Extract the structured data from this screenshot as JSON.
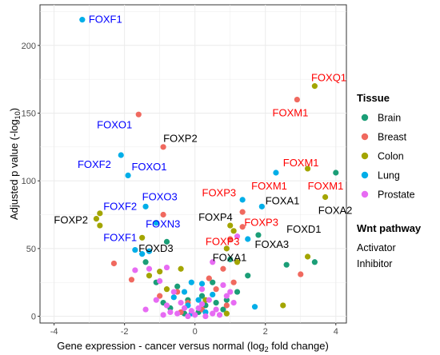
{
  "chart_data": {
    "type": "scatter",
    "xlabel": "Gene expression - cancer versus normal (log",
    "xlabel_sub": "2",
    "xlabel_tail": " fold change)",
    "ylabel": "Adjusted p value (-log",
    "ylabel_sub": "10",
    "ylabel_tail": ")",
    "xlim": [
      -4.4,
      4.3
    ],
    "ylim": [
      -5,
      230
    ],
    "x_ticks": [
      -4,
      -2,
      0,
      2,
      4
    ],
    "y_ticks": [
      0,
      50,
      100,
      150,
      200
    ],
    "grid": true,
    "legend_position": "right",
    "tissue_legend": {
      "title": "Tissue",
      "items": [
        {
          "name": "Brain",
          "color": "#1b9e77"
        },
        {
          "name": "Breast",
          "color": "#f0695f"
        },
        {
          "name": "Colon",
          "color": "#a3a500"
        },
        {
          "name": "Lung",
          "color": "#00aee8"
        },
        {
          "name": "Prostate",
          "color": "#e76bf3"
        }
      ]
    },
    "pathway_legend": {
      "title": "Wnt pathway",
      "items": [
        {
          "name": "Activator",
          "color": "#ff0000"
        },
        {
          "name": "Inhibitor",
          "color": "#0000ff"
        }
      ]
    },
    "series": [
      {
        "name": "Brain",
        "color": "#1b9e77",
        "points": [
          [
            -1.4,
            40
          ],
          [
            -0.8,
            55
          ],
          [
            1.0,
            42
          ],
          [
            1.8,
            60
          ],
          [
            2.6,
            38
          ],
          [
            3.4,
            40
          ],
          [
            4.0,
            106
          ],
          [
            -0.5,
            22
          ],
          [
            0.5,
            25
          ],
          [
            1.2,
            18
          ],
          [
            -0.2,
            12
          ],
          [
            0.3,
            8
          ],
          [
            0.8,
            5
          ],
          [
            -0.9,
            10
          ],
          [
            1.5,
            30
          ],
          [
            -0.3,
            2
          ],
          [
            0.1,
            3
          ],
          [
            0.6,
            10
          ],
          [
            -0.7,
            6
          ],
          [
            0.9,
            12
          ],
          [
            -1.1,
            25
          ],
          [
            0.2,
            15
          ]
        ]
      },
      {
        "name": "Breast",
        "color": "#f0695f",
        "points": [
          [
            -1.6,
            149
          ],
          [
            -0.9,
            125
          ],
          [
            -0.9,
            75
          ],
          [
            1.0,
            57
          ],
          [
            1.35,
            77
          ],
          [
            1.35,
            66
          ],
          [
            2.9,
            160
          ],
          [
            3.0,
            31
          ],
          [
            -2.3,
            39
          ],
          [
            -1.8,
            27
          ],
          [
            0.8,
            35
          ],
          [
            0.4,
            28
          ],
          [
            -0.5,
            18
          ],
          [
            0.2,
            5
          ],
          [
            -0.2,
            10
          ],
          [
            0.6,
            20
          ],
          [
            -1.0,
            15
          ],
          [
            1.1,
            25
          ],
          [
            -0.4,
            3
          ],
          [
            0.9,
            8
          ]
        ]
      },
      {
        "name": "Colon",
        "color": "#a3a500",
        "points": [
          [
            -2.8,
            72
          ],
          [
            -2.7,
            76
          ],
          [
            -2.7,
            67
          ],
          [
            -1.5,
            58
          ],
          [
            3.4,
            170
          ],
          [
            3.2,
            109
          ],
          [
            3.7,
            88
          ],
          [
            1.0,
            67
          ],
          [
            1.1,
            63
          ],
          [
            0.9,
            50
          ],
          [
            3.2,
            44
          ],
          [
            2.5,
            8
          ],
          [
            -1.0,
            33
          ],
          [
            -0.4,
            35
          ],
          [
            0.9,
            2
          ],
          [
            0.3,
            12
          ],
          [
            -0.8,
            20
          ],
          [
            1.2,
            40
          ],
          [
            -1.3,
            30
          ]
        ]
      },
      {
        "name": "Lung",
        "color": "#00aee8",
        "points": [
          [
            -3.2,
            219
          ],
          [
            -2.1,
            119
          ],
          [
            -1.9,
            104
          ],
          [
            -1.4,
            81
          ],
          [
            -1.1,
            69
          ],
          [
            1.35,
            86
          ],
          [
            2.3,
            106
          ],
          [
            1.9,
            81
          ],
          [
            1.5,
            57
          ],
          [
            -1.7,
            49
          ],
          [
            -1.5,
            46
          ],
          [
            -1.3,
            48
          ],
          [
            -0.1,
            25
          ],
          [
            0.2,
            24
          ],
          [
            -0.3,
            18
          ],
          [
            0.5,
            16
          ],
          [
            1.7,
            7
          ],
          [
            -0.2,
            8
          ],
          [
            0.1,
            12
          ],
          [
            -0.6,
            14
          ],
          [
            0.3,
            3
          ],
          [
            -0.1,
            2
          ]
        ]
      },
      {
        "name": "Prostate",
        "color": "#e76bf3",
        "points": [
          [
            -1.7,
            34
          ],
          [
            -1.3,
            35
          ],
          [
            -0.8,
            36
          ],
          [
            0.5,
            40
          ],
          [
            1.2,
            59
          ],
          [
            -1.0,
            26
          ],
          [
            -0.6,
            18
          ],
          [
            0.2,
            20
          ],
          [
            -0.4,
            10
          ],
          [
            0.1,
            6
          ],
          [
            0.3,
            0
          ],
          [
            -0.2,
            0
          ],
          [
            0.6,
            5
          ],
          [
            -0.8,
            8
          ],
          [
            0.9,
            15
          ],
          [
            -0.1,
            4
          ],
          [
            0.4,
            12
          ],
          [
            -0.5,
            2
          ],
          [
            0.7,
            1
          ],
          [
            -1.1,
            12
          ],
          [
            1.0,
            18
          ],
          [
            0.0,
            1
          ],
          [
            -0.3,
            6
          ],
          [
            0.2,
            9
          ],
          [
            -0.7,
            3
          ],
          [
            0.5,
            2
          ],
          [
            -1.4,
            5
          ],
          [
            1.1,
            10
          ],
          [
            0.8,
            23
          ],
          [
            -0.9,
            1
          ]
        ]
      }
    ],
    "annotations": [
      {
        "text": "FOXF1",
        "x": -3.2,
        "y": 219,
        "pathway": "Inhibitor",
        "anchor": "start",
        "dx": 8,
        "dy": 0
      },
      {
        "text": "FOXO1",
        "x": -1.6,
        "y": 141,
        "pathway": "Inhibitor",
        "anchor": "end",
        "dx": -8,
        "dy": 0
      },
      {
        "text": "FOXP2",
        "x": -0.9,
        "y": 131,
        "pathway": "none",
        "anchor": "start",
        "dx": 0,
        "dy": 0
      },
      {
        "text": "FOXF2",
        "x": -2.2,
        "y": 112,
        "pathway": "Inhibitor",
        "anchor": "end",
        "dx": -8,
        "dy": 0
      },
      {
        "text": "FOXO1",
        "x": -1.8,
        "y": 110,
        "pathway": "Inhibitor",
        "anchor": "start",
        "dx": 0,
        "dy": 0
      },
      {
        "text": "FOXO3",
        "x": -1.5,
        "y": 88,
        "pathway": "Inhibitor",
        "anchor": "start",
        "dx": 0,
        "dy": 0
      },
      {
        "text": "FOXF2",
        "x": -2.6,
        "y": 81,
        "pathway": "Inhibitor",
        "anchor": "start",
        "dx": 0,
        "dy": 0
      },
      {
        "text": "FOXP2",
        "x": -2.9,
        "y": 71,
        "pathway": "none",
        "anchor": "end",
        "dx": -6,
        "dy": 0
      },
      {
        "text": "FOXN3",
        "x": -1.4,
        "y": 68,
        "pathway": "Inhibitor",
        "anchor": "start",
        "dx": 0,
        "dy": 0
      },
      {
        "text": "FOXF1",
        "x": -2.6,
        "y": 58,
        "pathway": "Inhibitor",
        "anchor": "start",
        "dx": 0,
        "dy": 0
      },
      {
        "text": "FOXD3",
        "x": -1.6,
        "y": 50,
        "pathway": "none",
        "anchor": "start",
        "dx": 0,
        "dy": 0
      },
      {
        "text": "FOXP3",
        "x": 0.2,
        "y": 91,
        "pathway": "Activator",
        "anchor": "start",
        "dx": 0,
        "dy": 0
      },
      {
        "text": "FOXP4",
        "x": 0.1,
        "y": 73,
        "pathway": "none",
        "anchor": "start",
        "dx": 0,
        "dy": 0
      },
      {
        "text": "FOXP3",
        "x": 1.4,
        "y": 69,
        "pathway": "Activator",
        "anchor": "start",
        "dx": 0,
        "dy": 0
      },
      {
        "text": "FOXP3",
        "x": 0.3,
        "y": 55,
        "pathway": "Activator",
        "anchor": "start",
        "dx": 0,
        "dy": 0
      },
      {
        "text": "FOXA3",
        "x": 1.7,
        "y": 53,
        "pathway": "none",
        "anchor": "start",
        "dx": 0,
        "dy": 0
      },
      {
        "text": "FOXA1",
        "x": 0.5,
        "y": 43,
        "pathway": "none",
        "anchor": "start",
        "dx": 0,
        "dy": 0
      },
      {
        "text": "FOXA1",
        "x": 2.0,
        "y": 85,
        "pathway": "none",
        "anchor": "start",
        "dx": 0,
        "dy": 0
      },
      {
        "text": "FOXM1",
        "x": 1.6,
        "y": 96,
        "pathway": "Activator",
        "anchor": "start",
        "dx": 0,
        "dy": 0
      },
      {
        "text": "FOXM1",
        "x": 2.5,
        "y": 113,
        "pathway": "Activator",
        "anchor": "start",
        "dx": 0,
        "dy": 0
      },
      {
        "text": "FOXM1",
        "x": 3.2,
        "y": 96,
        "pathway": "Activator",
        "anchor": "start",
        "dx": 0,
        "dy": 0
      },
      {
        "text": "FOXM1",
        "x": 2.2,
        "y": 150,
        "pathway": "Activator",
        "anchor": "start",
        "dx": 0,
        "dy": 0
      },
      {
        "text": "FOXQ1",
        "x": 3.3,
        "y": 176,
        "pathway": "Activator",
        "anchor": "start",
        "dx": 0,
        "dy": 0
      },
      {
        "text": "FOXA2",
        "x": 3.5,
        "y": 78,
        "pathway": "none",
        "anchor": "start",
        "dx": 0,
        "dy": 0
      },
      {
        "text": "FOXD1",
        "x": 2.6,
        "y": 64,
        "pathway": "none",
        "anchor": "start",
        "dx": 0,
        "dy": 0
      }
    ]
  }
}
